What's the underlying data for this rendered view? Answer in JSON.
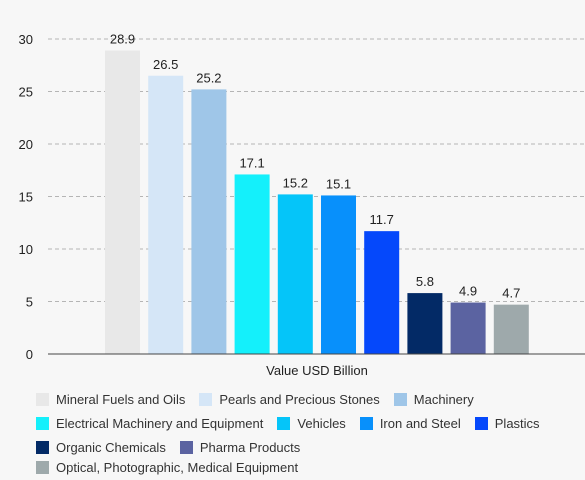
{
  "chart_data": {
    "type": "bar",
    "title": "",
    "xlabel": "Value USD Billion",
    "ylabel": "",
    "ylim": [
      0,
      30
    ],
    "yticks": [
      0,
      5,
      10,
      15,
      20,
      25,
      30
    ],
    "grid": "horizontal dashed",
    "legend_position": "bottom",
    "categories": [
      "Value USD Billion"
    ],
    "series": [
      {
        "name": "Mineral Fuels and Oils",
        "values": [
          28.9
        ],
        "label": "28.9",
        "color": "#e8e8e8"
      },
      {
        "name": "Pearls and Precious Stones",
        "values": [
          26.5
        ],
        "label": "26.5",
        "color": "#d5e6f7"
      },
      {
        "name": "Machinery",
        "values": [
          25.2
        ],
        "label": "25.2",
        "color": "#9fc6e8"
      },
      {
        "name": "Electrical Machinery and Equipment",
        "values": [
          17.1
        ],
        "label": "17.1",
        "color": "#14f0fb"
      },
      {
        "name": "Vehicles",
        "values": [
          15.2
        ],
        "label": "15.2",
        "color": "#05c5f9"
      },
      {
        "name": "Iron and Steel",
        "values": [
          15.1
        ],
        "label": "15.1",
        "color": "#0890fb"
      },
      {
        "name": "Plastics",
        "values": [
          11.7
        ],
        "label": "11.7",
        "color": "#0548fb"
      },
      {
        "name": "Organic Chemicals",
        "values": [
          5.8
        ],
        "label": "5.8",
        "color": "#032a66"
      },
      {
        "name": "Pharma Products",
        "values": [
          4.9
        ],
        "label": "4.9",
        "color": "#5b63a1"
      },
      {
        "name": "Optical, Photographic, Medical Equipment",
        "values": [
          4.7
        ],
        "label": "4.7",
        "color": "#9ea9ab"
      }
    ]
  }
}
